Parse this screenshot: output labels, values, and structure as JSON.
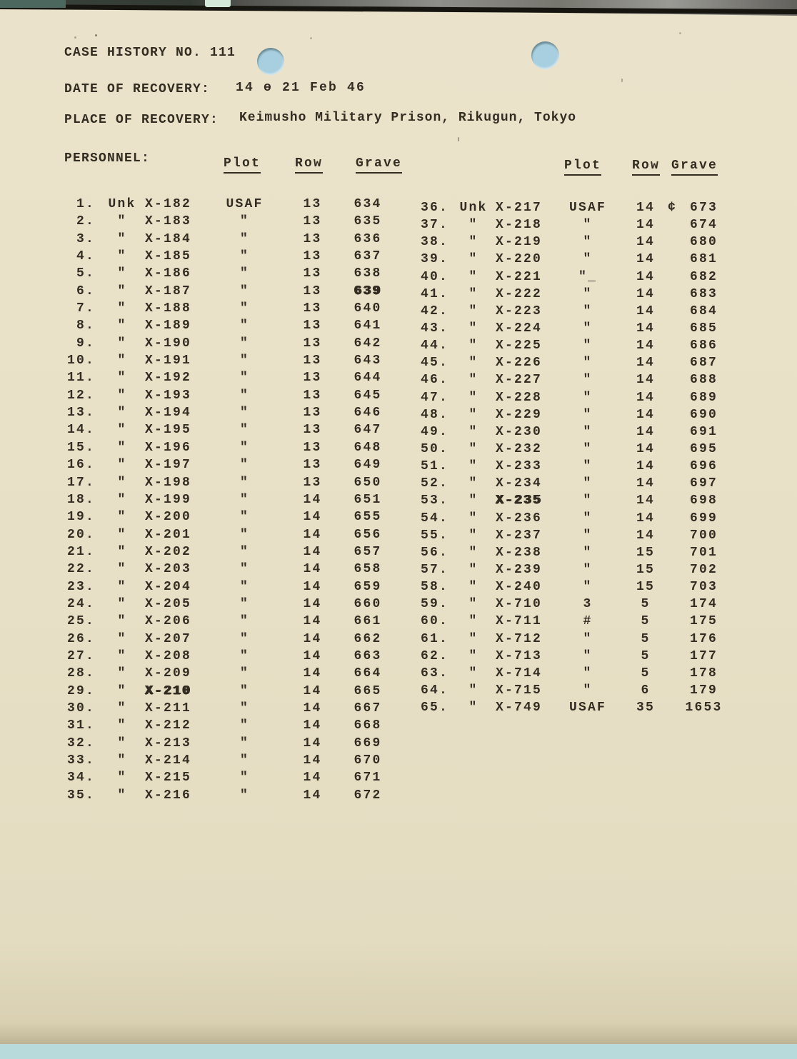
{
  "header": {
    "case_title": "CASE HISTORY NO. 111",
    "date_label": "DATE OF RECOVERY:",
    "date_value": "14 ө 21 Feb 46",
    "place_label": "PLACE OF RECOVERY:",
    "place_value": "Keimusho Military Prison, Rikugun, Tokyo",
    "personnel_label": "PERSONNEL:"
  },
  "cols": {
    "plot": "Plot",
    "row": "Row",
    "grave": "Grave"
  },
  "colors": {
    "paper": "#e8e0c6",
    "ink": "#332c21",
    "punch_hole_blue": "#a8cfe0",
    "under_page_blue": "#b9dada",
    "scanner_bar": "#16150f",
    "corner_teal": "#4c685e",
    "mint_patch": "#d3e8d9"
  },
  "table_left": [
    {
      "no": "1.",
      "name": "Unk",
      "id": "X-182",
      "plot": "USAF",
      "row": "13",
      "grave": "634"
    },
    {
      "no": "2.",
      "name": "\"",
      "id": "X-183",
      "plot": "\"",
      "row": "13",
      "grave": "635"
    },
    {
      "no": "3.",
      "name": "\"",
      "id": "X-184",
      "plot": "\"",
      "row": "13",
      "grave": "636"
    },
    {
      "no": "4.",
      "name": "\"",
      "id": "X-185",
      "plot": "\"",
      "row": "13",
      "grave": "637"
    },
    {
      "no": "5.",
      "name": "\"",
      "id": "X-186",
      "plot": "\"",
      "row": "13",
      "grave": "638"
    },
    {
      "no": "6.",
      "name": "\"",
      "id": "X-187",
      "plot": "\"",
      "row": "13",
      "grave": "639",
      "fx": {
        "grave": "smudge"
      }
    },
    {
      "no": "7.",
      "name": "\"",
      "id": "X-188",
      "plot": "\"",
      "row": "13",
      "grave": "640"
    },
    {
      "no": "8.",
      "name": "\"",
      "id": "X-189",
      "plot": "\"",
      "row": "13",
      "grave": "641"
    },
    {
      "no": "9.",
      "name": "\"",
      "id": "X-190",
      "plot": "\"",
      "row": "13",
      "grave": "642"
    },
    {
      "no": "10.",
      "name": "\"",
      "id": "X-191",
      "plot": "\"",
      "row": "13",
      "grave": "643"
    },
    {
      "no": "11.",
      "name": "\"",
      "id": "X-192",
      "plot": "\"",
      "row": "13",
      "grave": "644"
    },
    {
      "no": "12.",
      "name": "\"",
      "id": "X-193",
      "plot": "\"",
      "row": "13",
      "grave": "645"
    },
    {
      "no": "13.",
      "name": "\"",
      "id": "X-194",
      "plot": "\"",
      "row": "13",
      "grave": "646"
    },
    {
      "no": "14.",
      "name": "\"",
      "id": "X-195",
      "plot": "\"",
      "row": "13",
      "grave": "647"
    },
    {
      "no": "15.",
      "name": "\"",
      "id": "X-196",
      "plot": "\"",
      "row": "13",
      "grave": "648"
    },
    {
      "no": "16.",
      "name": "\"",
      "id": "X-197",
      "plot": "\"",
      "row": "13",
      "grave": "649"
    },
    {
      "no": "17.",
      "name": "\"",
      "id": "X-198",
      "plot": "\"",
      "row": "13",
      "grave": "650"
    },
    {
      "no": "18.",
      "name": "\"",
      "id": "X-199",
      "plot": "\"",
      "row": "14",
      "grave": "651"
    },
    {
      "no": "19.",
      "name": "\"",
      "id": "X-200",
      "plot": "\"",
      "row": "14",
      "grave": "655"
    },
    {
      "no": "20.",
      "name": "\"",
      "id": "X-201",
      "plot": "\"",
      "row": "14",
      "grave": "656"
    },
    {
      "no": "21.",
      "name": "\"",
      "id": "X-202",
      "plot": "\"",
      "row": "14",
      "grave": "657"
    },
    {
      "no": "22.",
      "name": "\"",
      "id": "X-203",
      "plot": "\"",
      "row": "14",
      "grave": "658"
    },
    {
      "no": "23.",
      "name": "\"",
      "id": "X-204",
      "plot": "\"",
      "row": "14",
      "grave": "659"
    },
    {
      "no": "24.",
      "name": "\"",
      "id": "X-205",
      "plot": "\"",
      "row": "14",
      "grave": "660"
    },
    {
      "no": "25.",
      "name": "\"",
      "id": "X-206",
      "plot": "\"",
      "row": "14",
      "grave": "661"
    },
    {
      "no": "26.",
      "name": "\"",
      "id": "X-207",
      "plot": "\"",
      "row": "14",
      "grave": "662"
    },
    {
      "no": "27.",
      "name": "\"",
      "id": "X-208",
      "plot": "\"",
      "row": "14",
      "grave": "663"
    },
    {
      "no": "28.",
      "name": "\"",
      "id": "X-209",
      "plot": "\"",
      "row": "14",
      "grave": "664"
    },
    {
      "no": "29.",
      "name": "\"",
      "id": "X-210",
      "plot": "\"",
      "row": "14",
      "grave": "665",
      "fx": {
        "id": "smudge"
      }
    },
    {
      "no": "30.",
      "name": "\"",
      "id": "X-211",
      "plot": "\"",
      "row": "14",
      "grave": "667"
    },
    {
      "no": "31.",
      "name": "\"",
      "id": "X-212",
      "plot": "\"",
      "row": "14",
      "grave": "668"
    },
    {
      "no": "32.",
      "name": "\"",
      "id": "X-213",
      "plot": "\"",
      "row": "14",
      "grave": "669"
    },
    {
      "no": "33.",
      "name": "\"",
      "id": "X-214",
      "plot": "\"",
      "row": "14",
      "grave": "670"
    },
    {
      "no": "34.",
      "name": "\"",
      "id": "X-215",
      "plot": "\"",
      "row": "14",
      "grave": "671"
    },
    {
      "no": "35.",
      "name": "\"",
      "id": "X-216",
      "plot": "\"",
      "row": "14",
      "grave": "672"
    }
  ],
  "table_right": [
    {
      "no": "36.",
      "name": "Unk",
      "id": "X-217",
      "plot": "USAF",
      "row": "14",
      "grave": "673",
      "mark": "¢"
    },
    {
      "no": "37.",
      "name": "\"",
      "id": "X-218",
      "plot": "\"",
      "row": "14",
      "grave": "674"
    },
    {
      "no": "38.",
      "name": "\"",
      "id": "X-219",
      "plot": "\"",
      "row": "14",
      "grave": "680"
    },
    {
      "no": "39.",
      "name": "\"",
      "id": "X-220",
      "plot": "\"",
      "row": "14",
      "grave": "681"
    },
    {
      "no": "40.",
      "name": "\"",
      "id": "X-221",
      "plot": "\"_",
      "row": "14",
      "grave": "682"
    },
    {
      "no": "41.",
      "name": "\"",
      "id": "X-222",
      "plot": "\"",
      "row": "14",
      "grave": "683"
    },
    {
      "no": "42.",
      "name": "\"",
      "id": "X-223",
      "plot": "\"",
      "row": "14",
      "grave": "684"
    },
    {
      "no": "43.",
      "name": "\"",
      "id": "X-224",
      "plot": "\"",
      "row": "14",
      "grave": "685"
    },
    {
      "no": "44.",
      "name": "\"",
      "id": "X-225",
      "plot": "\"",
      "row": "14",
      "grave": "686"
    },
    {
      "no": "45.",
      "name": "\"",
      "id": "X-226",
      "plot": "\"",
      "row": "14",
      "grave": "687"
    },
    {
      "no": "46.",
      "name": "\"",
      "id": "X-227",
      "plot": "\"",
      "row": "14",
      "grave": "688"
    },
    {
      "no": "47.",
      "name": "\"",
      "id": "X-228",
      "plot": "\"",
      "row": "14",
      "grave": "689"
    },
    {
      "no": "48.",
      "name": "\"",
      "id": "X-229",
      "plot": "\"",
      "row": "14",
      "grave": "690"
    },
    {
      "no": "49.",
      "name": "\"",
      "id": "X-230",
      "plot": "\"",
      "row": "14",
      "grave": "691"
    },
    {
      "no": "50.",
      "name": "\"",
      "id": "X-232",
      "plot": "\"",
      "row": "14",
      "grave": "695"
    },
    {
      "no": "51.",
      "name": "\"",
      "id": "X-233",
      "plot": "\"",
      "row": "14",
      "grave": "696"
    },
    {
      "no": "52.",
      "name": "\"",
      "id": "X-234",
      "plot": "\"",
      "row": "14",
      "grave": "697"
    },
    {
      "no": "53.",
      "name": "\"",
      "id": "X-235",
      "plot": "\"",
      "row": "14",
      "grave": "698",
      "fx": {
        "id": "smudge"
      }
    },
    {
      "no": "54.",
      "name": "\"",
      "id": "X-236",
      "plot": "\"",
      "row": "14",
      "grave": "699"
    },
    {
      "no": "55.",
      "name": "\"",
      "id": "X-237",
      "plot": "\"",
      "row": "14",
      "grave": "700"
    },
    {
      "no": "56.",
      "name": "\"",
      "id": "X-238",
      "plot": "\"",
      "row": "15",
      "grave": "701"
    },
    {
      "no": "57.",
      "name": "\"",
      "id": "X-239",
      "plot": "\"",
      "row": "15",
      "grave": "702"
    },
    {
      "no": "58.",
      "name": "\"",
      "id": "X-240",
      "plot": "\"",
      "row": "15",
      "grave": "703"
    },
    {
      "no": "59.",
      "name": "\"",
      "id": "X-710",
      "plot": "3",
      "row": "5",
      "grave": "174"
    },
    {
      "no": "60.",
      "name": "\"",
      "id": "X-711",
      "plot": "#",
      "row": "5",
      "grave": "175"
    },
    {
      "no": "61.",
      "name": "\"",
      "id": "X-712",
      "plot": "\"",
      "row": "5",
      "grave": "176"
    },
    {
      "no": "62.",
      "name": "\"",
      "id": "X-713",
      "plot": "\"",
      "row": "5",
      "grave": "177"
    },
    {
      "no": "63.",
      "name": "\"",
      "id": "X-714",
      "plot": "\"",
      "row": "5",
      "grave": "178"
    },
    {
      "no": "64.",
      "name": "\"",
      "id": "X-715",
      "plot": "\"",
      "row": "6",
      "grave": "179"
    },
    {
      "no": "65.",
      "name": "\"",
      "id": "X-749",
      "plot": "USAF",
      "row": "35",
      "grave": "1653"
    }
  ]
}
